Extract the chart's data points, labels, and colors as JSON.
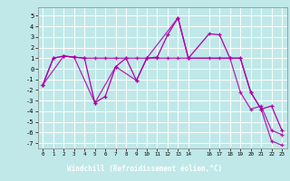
{
  "bg_color": "#c0e8e8",
  "grid_color": "#ffffff",
  "line_color": "#aa00aa",
  "xlabel": "Windchill (Refroidissement éolien,°C)",
  "xlabel_bg": "#880088",
  "xlabel_fg": "#ffffff",
  "series1_x": [
    0,
    1,
    2,
    3,
    4,
    5,
    6,
    7,
    8,
    9,
    10,
    11,
    12,
    13,
    14,
    16,
    17,
    18,
    19,
    20,
    21,
    22,
    23
  ],
  "series1_y": [
    -1.5,
    1.0,
    1.2,
    1.1,
    1.0,
    -3.2,
    -2.6,
    0.2,
    1.0,
    -1.1,
    1.0,
    1.1,
    3.2,
    4.8,
    1.0,
    3.3,
    3.2,
    1.0,
    1.0,
    -2.2,
    -3.8,
    -3.5,
    -5.8
  ],
  "series2_x": [
    0,
    1,
    2,
    3,
    4,
    5,
    6,
    7,
    8,
    9,
    10,
    11,
    12,
    13,
    14,
    16,
    17,
    18,
    19,
    20,
    21,
    22,
    23
  ],
  "series2_y": [
    -1.5,
    1.0,
    1.2,
    1.1,
    1.0,
    1.0,
    1.0,
    1.0,
    1.0,
    1.0,
    1.0,
    1.0,
    1.0,
    1.0,
    1.0,
    1.0,
    1.0,
    1.0,
    -2.2,
    -3.8,
    -3.5,
    -5.8,
    -6.2
  ],
  "series3_x": [
    0,
    2,
    3,
    5,
    7,
    9,
    10,
    13,
    14,
    19,
    20,
    21,
    22,
    23
  ],
  "series3_y": [
    -1.5,
    1.2,
    1.1,
    -3.2,
    0.2,
    -1.1,
    1.0,
    4.8,
    1.0,
    1.0,
    -2.2,
    -3.8,
    -6.8,
    -7.2
  ],
  "ylim": [
    -7.5,
    5.8
  ],
  "xlim": [
    -0.5,
    23.5
  ],
  "yticks": [
    -7,
    -6,
    -5,
    -4,
    -3,
    -2,
    -1,
    0,
    1,
    2,
    3,
    4,
    5
  ],
  "xticks": [
    0,
    1,
    2,
    3,
    4,
    5,
    6,
    7,
    8,
    9,
    10,
    11,
    12,
    13,
    14,
    16,
    17,
    18,
    19,
    20,
    21,
    22,
    23
  ]
}
